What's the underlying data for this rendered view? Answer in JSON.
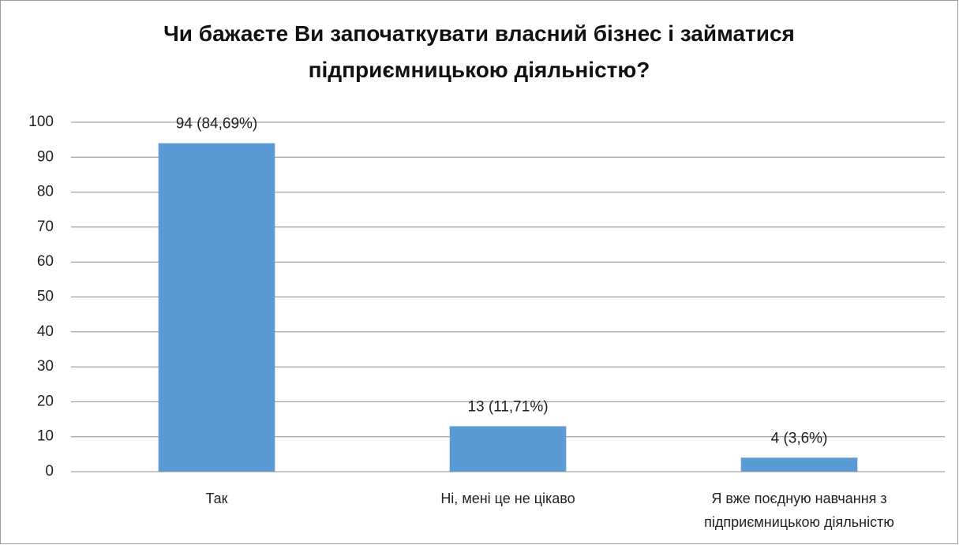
{
  "chart_data": {
    "type": "bar",
    "title": "Чи бажаєте Ви започаткувати власний бізнес і займатися підприємницькою діяльністю?",
    "categories": [
      "Так",
      "Ні, мені це не цікаво",
      "Я вже поєдную навчання з підприємницькою діяльністю"
    ],
    "values": [
      94,
      13,
      4
    ],
    "value_labels": [
      "94 (84,69%)",
      "13 (11,71%)",
      "4 (3,6%)"
    ],
    "color": "#5b9bd5",
    "ylim": [
      0,
      100
    ],
    "yticks": [
      0,
      10,
      20,
      30,
      40,
      50,
      60,
      70,
      80,
      90,
      100
    ],
    "grid": true
  }
}
